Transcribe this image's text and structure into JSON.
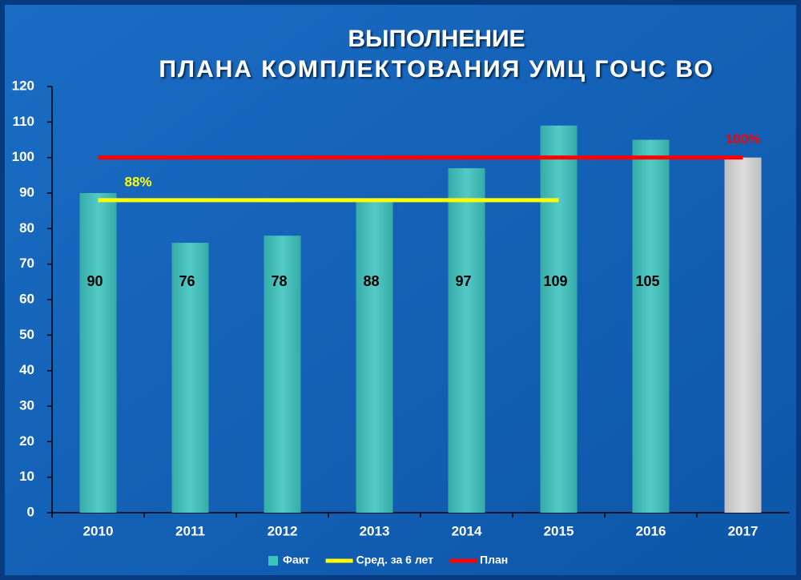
{
  "chart_data": {
    "type": "bar",
    "title": [
      "ВЫПОЛНЕНИЕ",
      "ПЛАНА КОМПЛЕКТОВАНИЯ УМЦ ГОЧС ВО"
    ],
    "categories": [
      "2010",
      "2011",
      "2012",
      "2013",
      "2014",
      "2015",
      "2016",
      "2017"
    ],
    "series": [
      {
        "name": "Факт",
        "type": "bar",
        "color": "#3cc3be",
        "point_colors": [
          "#3cc3be",
          "#3cc3be",
          "#3cc3be",
          "#3cc3be",
          "#3cc3be",
          "#3cc3be",
          "#3cc3be",
          "#d8d8d8"
        ],
        "values": [
          90,
          76,
          78,
          88,
          97,
          109,
          105,
          100
        ],
        "value_labels": [
          "90",
          "76",
          "78",
          "88",
          "97",
          "109",
          "105",
          null
        ]
      },
      {
        "name": "Сред. за 6 лет",
        "type": "line",
        "color": "#ffff00",
        "values": [
          88,
          88,
          88,
          88,
          88,
          88,
          null,
          null
        ],
        "value_labels": [
          "88%",
          null,
          null,
          null,
          null,
          null,
          null,
          null
        ]
      },
      {
        "name": "План",
        "type": "line",
        "color": "#ff0000",
        "values": [
          100,
          100,
          100,
          100,
          100,
          100,
          100,
          100
        ],
        "value_labels": [
          null,
          null,
          null,
          null,
          null,
          null,
          null,
          "100%"
        ]
      }
    ],
    "ylim": [
      0,
      120
    ],
    "yticks": [
      0,
      10,
      20,
      30,
      40,
      50,
      60,
      70,
      80,
      90,
      100,
      110,
      120
    ],
    "legend": "bottom"
  }
}
